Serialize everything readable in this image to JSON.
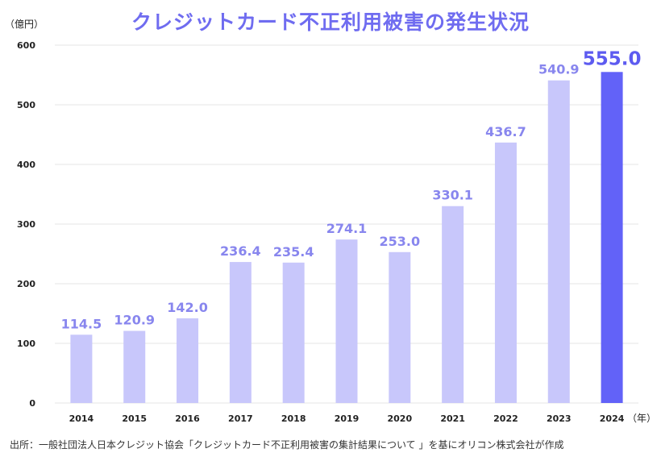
{
  "colors": {
    "title": "#6f6cf0",
    "bar": "#c8c7fb",
    "bar_highlight": "#6262f8",
    "label": "#8886ee",
    "label_highlight": "#5d5bf0",
    "axis_text": "#222222",
    "grid": "#e4e4e4"
  },
  "chart_data": {
    "type": "bar",
    "title": "クレジットカード不正利用被害の発生状況",
    "ylabel": "（億円）",
    "xlabel": "（年）",
    "ylim": [
      0,
      600
    ],
    "yticks": [
      0,
      100,
      200,
      300,
      400,
      500,
      600
    ],
    "categories": [
      "2014",
      "2015",
      "2016",
      "2017",
      "2018",
      "2019",
      "2020",
      "2021",
      "2022",
      "2023",
      "2024"
    ],
    "values": [
      114.5,
      120.9,
      142.0,
      236.4,
      235.4,
      274.1,
      253.0,
      330.1,
      436.7,
      540.9,
      555.0
    ],
    "value_labels": [
      "114.5",
      "120.9",
      "142.0",
      "236.4",
      "235.4",
      "274.1",
      "253.0",
      "330.1",
      "436.7",
      "540.9",
      "555.0"
    ],
    "highlight_index": 10,
    "grid": true
  },
  "source": "出所：一般社団法人日本クレジット協会「クレジットカード不正利用被害の集計結果について 」を基にオリコン株式会社が作成"
}
